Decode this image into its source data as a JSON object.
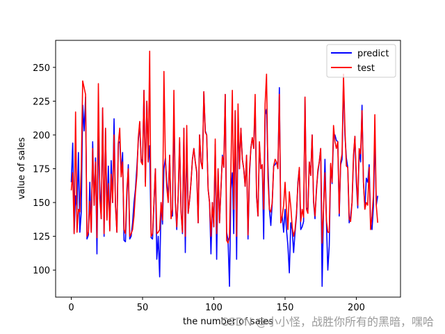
{
  "chart_data": {
    "type": "line",
    "title": "",
    "xlabel": "the number of sales",
    "ylabel": "value of sales",
    "xlim": [
      -11,
      231
    ],
    "ylim": [
      80,
      270
    ],
    "xticks": [
      0,
      50,
      100,
      150,
      200
    ],
    "yticks": [
      100,
      125,
      150,
      175,
      200,
      225,
      250
    ],
    "grid": false,
    "legend_position": "top-right",
    "series": [
      {
        "name": "predict",
        "color": "#0000ff",
        "values": [
          165,
          194,
          127,
          155,
          145,
          187,
          128,
          143,
          222,
          203,
          228,
          123,
          126,
          165,
          128,
          195,
          148,
          183,
          112,
          200,
          162,
          138,
          220,
          125,
          205,
          138,
          177,
          130,
          181,
          150,
          212,
          148,
          128,
          194,
          195,
          172,
          187,
          122,
          121,
          155,
          178,
          123,
          125,
          135,
          150,
          160,
          176,
          195,
          209,
          182,
          180,
          233,
          165,
          225,
          180,
          192,
          124,
          123,
          150,
          175,
          108,
          125,
          95,
          150,
          134,
          175,
          183,
          165,
          153,
          185,
          140,
          140,
          218,
          150,
          130,
          155,
          195,
          145,
          127,
          205,
          113,
          197,
          142,
          152,
          165,
          182,
          190,
          180,
          173,
          135,
          200,
          180,
          175,
          232,
          203,
          200,
          160,
          150,
          112,
          150,
          132,
          193,
          108,
          175,
          135,
          159,
          185,
          176,
          230,
          128,
          122,
          88,
          160,
          172,
          127,
          218,
          108,
          213,
          175,
          205,
          182,
          175,
          162,
          185,
          123,
          170,
          190,
          198,
          190,
          224,
          154,
          140,
          193,
          175,
          178,
          123,
          215,
          219,
          178,
          145,
          133,
          150,
          177,
          178,
          180,
          175,
          235,
          135,
          140,
          128,
          145,
          130,
          118,
          98,
          135,
          130,
          113,
          128,
          140,
          165,
          175,
          130,
          132,
          136,
          228,
          146,
          145,
          180,
          170,
          200,
          150,
          138,
          160,
          172,
          180,
          190,
          88,
          145,
          182,
          137,
          100,
          118,
          178,
          164,
          200,
          200,
          196,
          195,
          140,
          178,
          182,
          240,
          200,
          183,
          176,
          135,
          140,
          150,
          182,
          199,
          165,
          146,
          188,
          180,
          222,
          165,
          145,
          168,
          165,
          178,
          135,
          130,
          147,
          200,
          148,
          155
        ]
      },
      {
        "name": "test",
        "color": "#ff0000",
        "values": [
          159,
          172,
          127,
          217,
          128,
          145,
          143,
          175,
          240,
          235,
          230,
          125,
          128,
          151,
          128,
          190,
          148,
          180,
          124,
          238,
          153,
          138,
          220,
          127,
          205,
          137,
          164,
          129,
          171,
          150,
          200,
          147,
          128,
          194,
          205,
          169,
          180,
          130,
          127,
          160,
          175,
          125,
          127,
          130,
          140,
          157,
          170,
          198,
          210,
          180,
          178,
          233,
          162,
          225,
          180,
          262,
          125,
          127,
          150,
          175,
          127,
          128,
          130,
          150,
          137,
          247,
          183,
          161,
          150,
          185,
          138,
          145,
          233,
          152,
          132,
          155,
          198,
          143,
          128,
          205,
          125,
          207,
          142,
          152,
          165,
          182,
          190,
          180,
          172,
          135,
          200,
          180,
          175,
          232,
          202,
          200,
          160,
          150,
          125,
          150,
          132,
          197,
          127,
          175,
          135,
          160,
          184,
          176,
          230,
          122,
          120,
          125,
          175,
          233,
          145,
          218,
          125,
          223,
          175,
          205,
          182,
          175,
          162,
          185,
          126,
          173,
          190,
          198,
          190,
          230,
          155,
          140,
          195,
          175,
          178,
          145,
          223,
          245,
          168,
          145,
          143,
          150,
          177,
          182,
          180,
          175,
          230,
          135,
          140,
          148,
          165,
          145,
          130,
          158,
          147,
          132,
          125,
          130,
          142,
          163,
          176,
          136,
          145,
          139,
          228,
          145,
          142,
          180,
          170,
          200,
          151,
          140,
          158,
          174,
          180,
          190,
          120,
          145,
          172,
          137,
          128,
          128,
          179,
          165,
          207,
          195,
          190,
          195,
          142,
          180,
          186,
          245,
          205,
          177,
          176,
          138,
          136,
          150,
          185,
          199,
          170,
          148,
          190,
          186,
          218,
          165,
          145,
          150,
          148,
          176,
          130,
          140,
          155,
          215,
          148,
          135
        ]
      }
    ]
  },
  "watermark_text": "CSDN @小小怪，战胜你所有的黑暗，嘿哈"
}
